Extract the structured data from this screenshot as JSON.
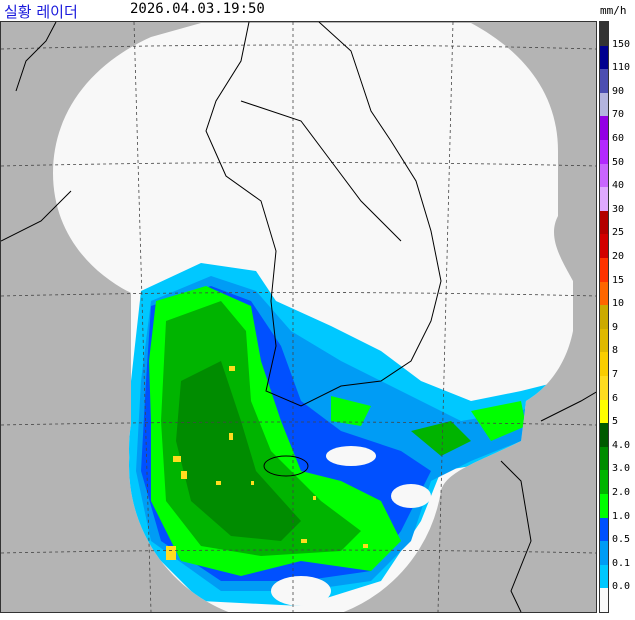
{
  "header": {
    "title": "실황 레이더",
    "timestamp": "2026.04.03.19:50",
    "unit": "mm/h"
  },
  "legend": {
    "labels": [
      "150",
      "110",
      "90",
      "70",
      "60",
      "50",
      "40",
      "30",
      "25",
      "20",
      "15",
      "10",
      "9",
      "8",
      "7",
      "6",
      "5",
      "4.0",
      "3.0",
      "2.0",
      "1.0",
      "0.5",
      "0.1",
      "0.0"
    ],
    "colors": [
      "#333333",
      "#00008f",
      "#4c4eb1",
      "#b3b4de",
      "#9300e4",
      "#b329ff",
      "#c965ff",
      "#e0a9ff",
      "#b30000",
      "#d20000",
      "#ff3300",
      "#ff6600",
      "#ccaa00",
      "#e0b900",
      "#f9cd00",
      "#ffdc1f",
      "#ffff00",
      "#005a00",
      "#008c00",
      "#00b400",
      "#00ff00",
      "#0050ff",
      "#009cf5",
      "#00c8ff",
      "#fafafa"
    ]
  },
  "map": {
    "background_color": "#b4b4b4",
    "coverage_color": "#f8f8f8",
    "region": "Korean Peninsula and surrounding seas"
  }
}
